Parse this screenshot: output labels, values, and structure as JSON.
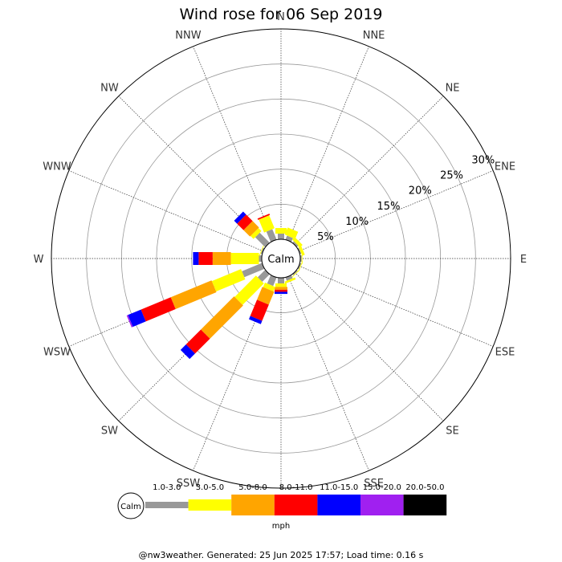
{
  "chart_data": {
    "type": "wind_rose",
    "title": "Wind rose for 06 Sep 2019",
    "directions": [
      "N",
      "NNE",
      "NE",
      "ENE",
      "E",
      "ESE",
      "SE",
      "SSE",
      "S",
      "SSW",
      "SW",
      "WSW",
      "W",
      "WNW",
      "NW",
      "NNW"
    ],
    "radial_ticks": [
      "5%",
      "10%",
      "15%",
      "20%",
      "25%",
      "30%"
    ],
    "radial_values": [
      5,
      10,
      15,
      20,
      25,
      30
    ],
    "radial_max": 30,
    "calm_label": "Calm",
    "unit": "mph",
    "bins": [
      {
        "label": "1.0-3.0",
        "color": "#999999"
      },
      {
        "label": "3.0-5.0",
        "color": "#ffff00"
      },
      {
        "label": "5.0-8.0",
        "color": "#ffa500"
      },
      {
        "label": "8.0-11.0",
        "color": "#ff0000"
      },
      {
        "label": "11.0-15.0",
        "color": "#0000ff"
      },
      {
        "label": "15.0-20.0",
        "color": "#a020f0"
      },
      {
        "label": "20.0-50.0",
        "color": "#000000"
      }
    ],
    "series": [
      {
        "direction": "N",
        "cumulative": [
          0.8,
          1.6,
          1.6,
          1.6,
          1.6,
          1.6,
          1.6
        ]
      },
      {
        "direction": "NNE",
        "cumulative": [
          0.6,
          1.7,
          1.7,
          1.7,
          1.7,
          1.7,
          1.7
        ]
      },
      {
        "direction": "NE",
        "cumulative": [
          0.3,
          0.8,
          0.8,
          0.8,
          0.8,
          0.8,
          0.8
        ]
      },
      {
        "direction": "ENE",
        "cumulative": [
          0.2,
          0.6,
          0.6,
          0.6,
          0.6,
          0.6,
          0.6
        ]
      },
      {
        "direction": "E",
        "cumulative": [
          0.2,
          0.3,
          0.3,
          0.3,
          0.3,
          0.3,
          0.3
        ]
      },
      {
        "direction": "ESE",
        "cumulative": [
          0.2,
          0.3,
          0.3,
          0.3,
          0.3,
          0.3,
          0.3
        ]
      },
      {
        "direction": "SE",
        "cumulative": [
          0.2,
          0.3,
          0.3,
          0.3,
          0.3,
          0.3,
          0.3
        ]
      },
      {
        "direction": "SSE",
        "cumulative": [
          0.5,
          0.8,
          0.8,
          0.8,
          0.8,
          0.8,
          0.8
        ]
      },
      {
        "direction": "S",
        "cumulative": [
          0.8,
          1.3,
          1.7,
          2.0,
          2.3,
          2.3,
          2.3
        ]
      },
      {
        "direction": "SSW",
        "cumulative": [
          1.3,
          2.0,
          4.0,
          6.5,
          7.0,
          7.0,
          7.0
        ]
      },
      {
        "direction": "SW",
        "cumulative": [
          1.5,
          5.8,
          12.5,
          15.5,
          16.6,
          16.6,
          16.6
        ]
      },
      {
        "direction": "WSW",
        "cumulative": [
          3.1,
          7.6,
          13.9,
          18.5,
          20.5,
          20.7,
          20.7
        ]
      },
      {
        "direction": "W",
        "cumulative": [
          0.4,
          4.4,
          7.0,
          9.0,
          9.8,
          9.8,
          9.8
        ]
      },
      {
        "direction": "WNW",
        "cumulative": [
          0.2,
          0.3,
          0.3,
          0.3,
          0.3,
          0.3,
          0.3
        ]
      },
      {
        "direction": "NW",
        "cumulative": [
          2.0,
          2.6,
          3.9,
          5.2,
          5.8,
          5.8,
          5.8
        ]
      },
      {
        "direction": "NNW",
        "cumulative": [
          1.6,
          3.6,
          3.6,
          3.8,
          3.8,
          3.8,
          3.8
        ]
      }
    ]
  },
  "footer": "@nw3weather. Generated: 25 Jun 2025 17:57; Load time: 0.16 s"
}
